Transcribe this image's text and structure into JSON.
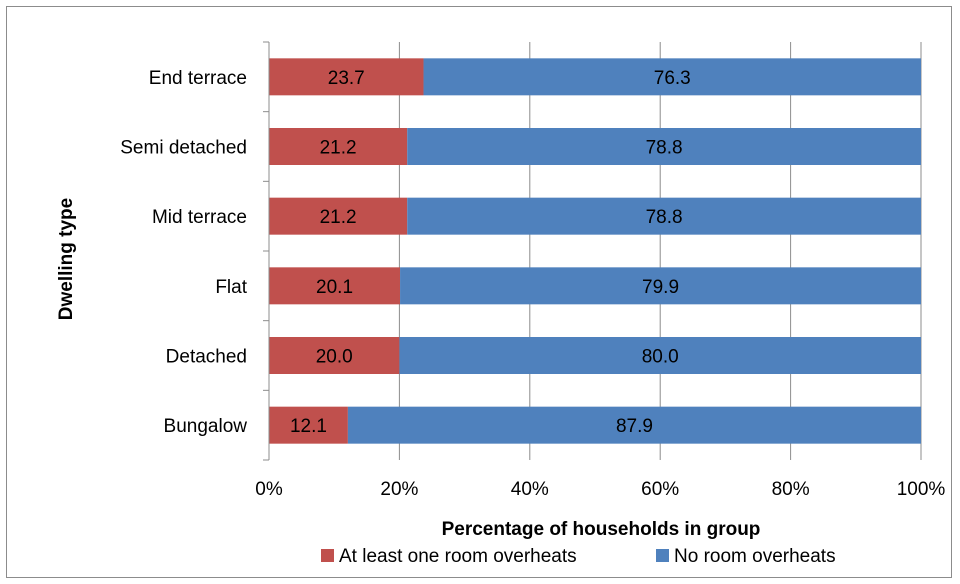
{
  "chart_data": {
    "type": "bar",
    "orientation": "horizontal",
    "stacked": "percent",
    "title": "",
    "xlabel": "Percentage of households in group",
    "ylabel": "Dwelling type",
    "categories": [
      "Bungalow",
      "Detached",
      "Flat",
      "Mid terrace",
      "Semi detached",
      "End terrace"
    ],
    "series": [
      {
        "name": "At least one room overheats",
        "color": "#c0504d",
        "values": [
          12.1,
          20.0,
          20.1,
          21.2,
          21.2,
          23.7
        ],
        "labels": [
          "12.1",
          "20.0",
          "20.1",
          "21.2",
          "21.2",
          "23.7"
        ]
      },
      {
        "name": "No room overheats",
        "color": "#4f81bd",
        "values": [
          87.9,
          80.0,
          79.9,
          78.8,
          78.8,
          76.3
        ],
        "labels": [
          "87.9",
          "80.0",
          "79.9",
          "78.8",
          "78.8",
          "76.3"
        ]
      }
    ],
    "xlim": [
      0,
      100
    ],
    "xticks": [
      "0%",
      "20%",
      "40%",
      "60%",
      "80%",
      "100%"
    ],
    "grid": true,
    "legend_position": "bottom"
  }
}
